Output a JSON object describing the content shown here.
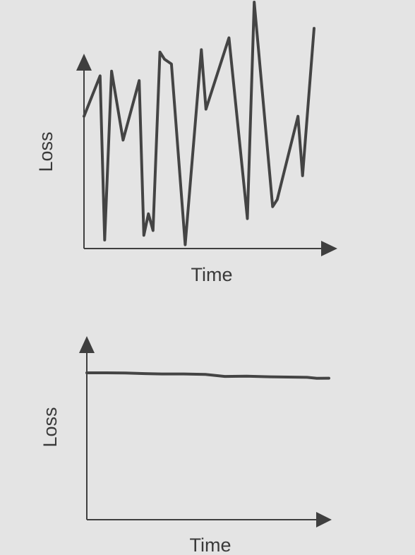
{
  "chart_data": [
    {
      "type": "line",
      "xlabel": "Time",
      "ylabel": "Loss",
      "xlim": [
        0,
        100
      ],
      "ylim": [
        0,
        100
      ],
      "grid": false,
      "legend": "none",
      "series": [
        {
          "x": [
            0,
            7,
            9,
            12,
            17,
            24,
            26,
            28,
            30,
            33,
            35,
            38,
            44,
            51,
            53,
            63,
            71,
            74,
            82,
            84,
            93,
            95,
            100
          ],
          "y": [
            55,
            72,
            3,
            74,
            45,
            70,
            5,
            14,
            7,
            82,
            79,
            77,
            1,
            83,
            58,
            88,
            12,
            103,
            17,
            20,
            55,
            30,
            92
          ]
        }
      ]
    },
    {
      "type": "line",
      "xlabel": "Time",
      "ylabel": "Loss",
      "xlim": [
        0,
        100
      ],
      "ylim": [
        0,
        100
      ],
      "grid": false,
      "legend": "none",
      "series": [
        {
          "x": [
            0,
            8,
            16,
            24,
            31,
            40,
            49,
            57,
            66,
            74,
            83,
            91,
            95,
            100
          ],
          "y": [
            90,
            90,
            89.9,
            89.5,
            89.3,
            89.3,
            89,
            87.8,
            87.9,
            87.6,
            87.4,
            87.2,
            86.6,
            86.7
          ]
        }
      ]
    }
  ]
}
